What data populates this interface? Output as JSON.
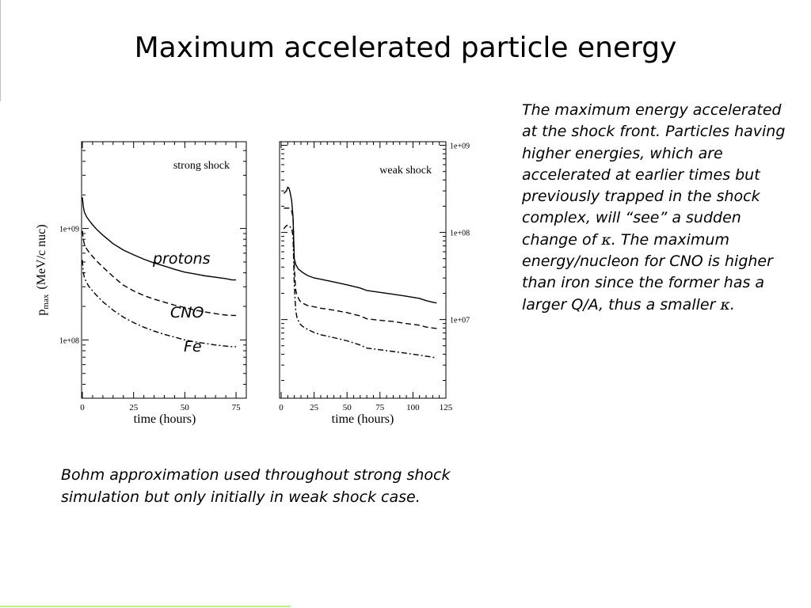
{
  "slide": {
    "title": "Maximum accelerated particle energy",
    "side_text": {
      "before_kappa1": "The maximum energy accelerated at the shock front. Particles having higher energies, which are accelerated at earlier times but previously trapped in the shock complex, will “see” a sudden change of ",
      "kappa1": "κ",
      "middle": ". The maximum energy/nucleon for CNO is higher than iron since the former has a larger Q/A, thus a smaller ",
      "kappa2": "κ",
      "after_kappa2": "."
    },
    "caption": "Bohm approximation used throughout strong shock simulation but only initially in weak shock case."
  },
  "chart_data": [
    {
      "type": "line",
      "title": "strong shock",
      "xlabel": "time (hours)",
      "ylabel_main": "p",
      "ylabel_sub": "max",
      "ylabel_rest": "(MeV/c nuc)",
      "xlim": [
        0,
        80
      ],
      "ylim": [
        30000000,
        6000000000
      ],
      "yscale": "log",
      "xticks": [
        0,
        25,
        50,
        75
      ],
      "yticks": [
        {
          "value": 100000000,
          "label": "1e+08"
        },
        {
          "value": 1000000000,
          "label": "1e+09"
        }
      ],
      "annotations": [
        {
          "text": "protons",
          "x": 45,
          "y": 780000000
        },
        {
          "text": "CNO",
          "x": 52,
          "y": 250000000
        },
        {
          "text": "Fe",
          "x": 55,
          "y": 140000000
        }
      ],
      "series": [
        {
          "style": "solid",
          "x": [
            0,
            0.5,
            1,
            2,
            3,
            5,
            7,
            10,
            15,
            20,
            25,
            30,
            35,
            40,
            45,
            50,
            55,
            60,
            65,
            70,
            73,
            75
          ],
          "y": [
            1900000000,
            1550000000,
            1400000000,
            1280000000,
            1200000000,
            1080000000,
            980000000,
            870000000,
            730000000,
            640000000,
            580000000,
            530000000,
            490000000,
            460000000,
            430000000,
            405000000,
            390000000,
            375000000,
            365000000,
            355000000,
            345000000,
            345000000
          ]
        },
        {
          "style": "dashed",
          "x": [
            0,
            0.5,
            1,
            2,
            3,
            5,
            7,
            10,
            15,
            20,
            25,
            30,
            35,
            40,
            45,
            50,
            55,
            60,
            65,
            70,
            73,
            75
          ],
          "y": [
            950000000,
            790000000,
            720000000,
            660000000,
            620000000,
            560000000,
            510000000,
            450000000,
            370000000,
            310000000,
            275000000,
            250000000,
            232000000,
            218000000,
            205000000,
            195000000,
            185000000,
            178000000,
            172000000,
            167000000,
            166000000,
            166000000
          ]
        },
        {
          "style": "dashdot",
          "x": [
            0,
            0.5,
            1,
            2,
            3,
            5,
            7,
            10,
            15,
            20,
            25,
            30,
            35,
            40,
            45,
            50,
            55,
            60,
            65,
            70,
            73,
            75
          ],
          "y": [
            520000000,
            400000000,
            360000000,
            330000000,
            305000000,
            275000000,
            250000000,
            220000000,
            185000000,
            160000000,
            143000000,
            130000000,
            120000000,
            112000000,
            106000000,
            100000000,
            96000000,
            93000000,
            90000000,
            88000000,
            87000000,
            87000000
          ]
        }
      ]
    },
    {
      "type": "line",
      "title": "weak shock",
      "xlabel": "time (hours)",
      "xlim": [
        0,
        125
      ],
      "ylim": [
        1250000,
        1100000000
      ],
      "yscale": "log",
      "yaxis_side": "right",
      "xticks": [
        0,
        25,
        50,
        75,
        100,
        125
      ],
      "yticks": [
        {
          "value": 10000000,
          "label": "1e+07"
        },
        {
          "value": 100000000,
          "label": "1e+08"
        },
        {
          "value": 1000000000,
          "label": "1e+09"
        }
      ],
      "series": [
        {
          "style": "solid",
          "x": [
            2,
            4,
            5,
            6,
            7,
            8,
            9,
            10,
            11,
            13,
            16,
            20,
            25,
            30,
            40,
            50,
            60,
            65,
            75,
            85,
            95,
            105,
            110,
            115,
            118
          ],
          "y": [
            280000000,
            300000000,
            330000000,
            320000000,
            280000000,
            230000000,
            150000000,
            50000000,
            43000000,
            38000000,
            35000000,
            32000000,
            30000000,
            29000000,
            27000000,
            25000000,
            23000000,
            21500000,
            20500000,
            19500000,
            18500000,
            17500000,
            16500000,
            15800000,
            15500000
          ]
        },
        {
          "style": "dashed",
          "x": [
            2,
            4,
            6,
            8,
            9,
            10,
            11,
            12,
            14,
            16,
            20,
            25,
            30,
            40,
            50,
            60,
            65,
            75,
            85,
            95,
            105,
            110,
            115,
            118
          ],
          "y": [
            190000000,
            190000000,
            190000000,
            175000000,
            150000000,
            40000000,
            22000000,
            19000000,
            16500000,
            15500000,
            14500000,
            14000000,
            13500000,
            12800000,
            12000000,
            11000000,
            10200000,
            9800000,
            9500000,
            9000000,
            8600000,
            8200000,
            8000000,
            7900000
          ]
        },
        {
          "style": "dashdot",
          "x": [
            2,
            4,
            6,
            8,
            9,
            10,
            11,
            12,
            14,
            16,
            20,
            25,
            30,
            40,
            50,
            60,
            65,
            75,
            85,
            95,
            105,
            110,
            115,
            118
          ],
          "y": [
            110000000,
            120000000,
            120000000,
            110000000,
            90000000,
            25000000,
            13000000,
            10500000,
            9000000,
            8400000,
            7700000,
            7100000,
            6700000,
            6200000,
            5700000,
            5100000,
            4700000,
            4500000,
            4300000,
            4100000,
            3900000,
            3800000,
            3700000,
            3600000
          ]
        }
      ]
    }
  ]
}
